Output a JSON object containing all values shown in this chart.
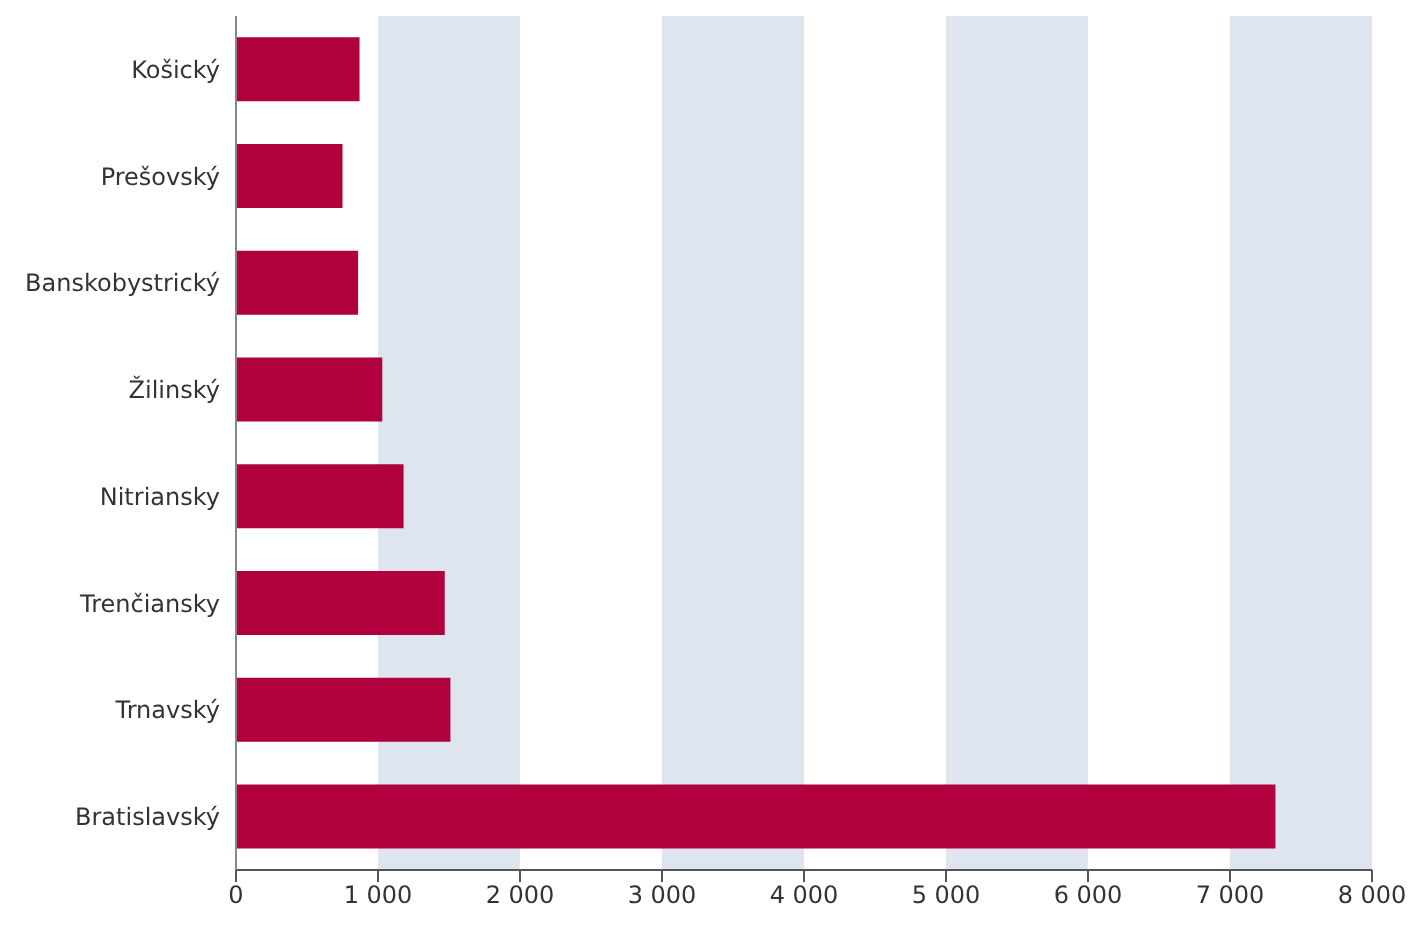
{
  "chart_data": {
    "type": "bar",
    "orientation": "horizontal",
    "categories": [
      "Košický",
      "Prešovský",
      "Banskobystrický",
      "Žilinský",
      "Nitriansky",
      "Trenčiansky",
      "Trnavský",
      "Bratislavský"
    ],
    "values": [
      870,
      750,
      860,
      1030,
      1180,
      1470,
      1510,
      7320
    ],
    "color": "#b0003e",
    "xlim": [
      0,
      8000
    ],
    "xticks": [
      {
        "value": 0,
        "label": "0"
      },
      {
        "value": 1000,
        "label": "1 000"
      },
      {
        "value": 2000,
        "label": "2 000"
      },
      {
        "value": 3000,
        "label": "3 000"
      },
      {
        "value": 4000,
        "label": "4 000"
      },
      {
        "value": 5000,
        "label": "5 000"
      },
      {
        "value": 6000,
        "label": "6 000"
      },
      {
        "value": 7000,
        "label": "7 000"
      },
      {
        "value": 8000,
        "label": "8 000"
      }
    ],
    "bands": [
      {
        "axis": "x",
        "from": 1000,
        "to": 2000,
        "color": "#dfe5ef"
      },
      {
        "axis": "x",
        "from": 3000,
        "to": 4000,
        "color": "#dfe5ef"
      },
      {
        "axis": "x",
        "from": 5000,
        "to": 6000,
        "color": "#dfe5ef"
      },
      {
        "axis": "x",
        "from": 7000,
        "to": 8000,
        "color": "#dfe5ef"
      }
    ],
    "grid": false,
    "legend": false
  }
}
